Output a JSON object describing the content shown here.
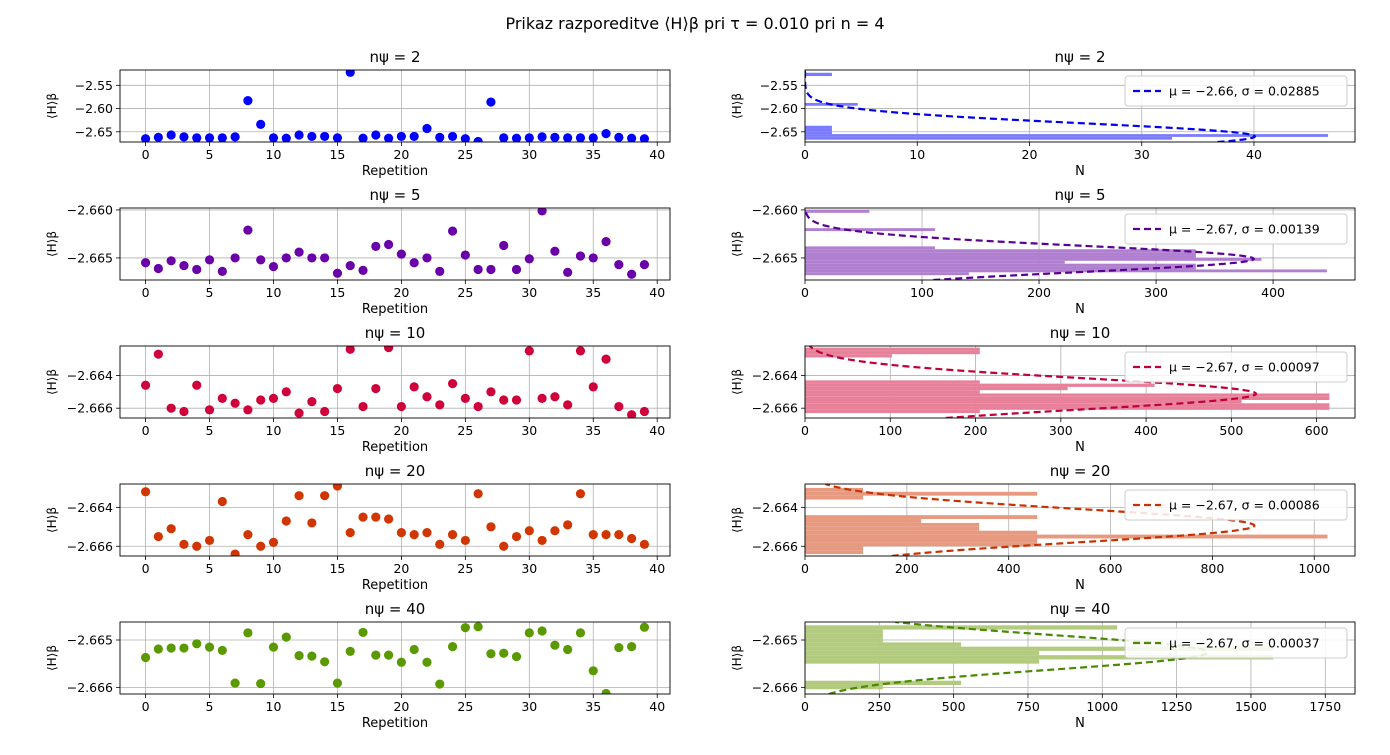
{
  "suptitle": "Prikaz razporeditve ⟨H⟩β pri τ = 0.010 pri n = 4",
  "chart_data": [
    {
      "type": "scatter",
      "title": "nψ = 2",
      "xlabel": "Repetition",
      "ylabel": "⟨H⟩β",
      "color": "#0000ff",
      "xlim": [
        -2,
        41
      ],
      "ylim": [
        -2.672,
        -2.517
      ],
      "xticks": [
        "0",
        "5",
        "10",
        "15",
        "20",
        "25",
        "30",
        "35",
        "40"
      ],
      "yticks": [
        "−2.55",
        "−2.60",
        "−2.65"
      ],
      "grid": true,
      "x": [
        0,
        1,
        2,
        3,
        4,
        5,
        6,
        7,
        8,
        9,
        10,
        11,
        12,
        13,
        14,
        15,
        16,
        17,
        18,
        19,
        20,
        21,
        22,
        23,
        24,
        25,
        26,
        27,
        28,
        29,
        30,
        31,
        32,
        33,
        34,
        35,
        36,
        37,
        38,
        39
      ],
      "y": [
        -2.665,
        -2.662,
        -2.657,
        -2.661,
        -2.663,
        -2.663,
        -2.663,
        -2.661,
        -2.583,
        -2.634,
        -2.663,
        -2.664,
        -2.657,
        -2.66,
        -2.66,
        -2.663,
        -2.522,
        -2.664,
        -2.657,
        -2.664,
        -2.66,
        -2.66,
        -2.643,
        -2.662,
        -2.66,
        -2.665,
        -2.671,
        -2.586,
        -2.663,
        -2.664,
        -2.663,
        -2.661,
        -2.662,
        -2.663,
        -2.663,
        -2.663,
        -2.654,
        -2.662,
        -2.664,
        -2.665
      ]
    },
    {
      "type": "histogram",
      "title": "nψ = 2",
      "xlabel": "N",
      "ylabel": "⟨H⟩β",
      "orientation": "horizontal",
      "color": "#7b7bff",
      "xlim": [
        0,
        49
      ],
      "ylim": [
        -2.672,
        -2.517
      ],
      "xticks": [
        "0",
        "10",
        "20",
        "30",
        "40"
      ],
      "yticks": [
        "−2.55",
        "−2.60",
        "−2.65"
      ],
      "grid": true,
      "bins": [
        [
          -2.53,
          -2.523,
          2.4
        ],
        [
          -2.594,
          -2.588,
          4.7
        ],
        [
          -2.643,
          -2.637,
          2.4
        ],
        [
          -2.649,
          -2.643,
          2.4
        ],
        [
          -2.655,
          -2.649,
          2.4
        ],
        [
          -2.661,
          -2.655,
          46.6
        ],
        [
          -2.667,
          -2.661,
          32.7
        ]
      ],
      "legend": "μ = −2.66, σ = 0.02885",
      "legend_position": "upper right",
      "fit_color": "#0000ee",
      "fit_mu": -2.66,
      "fit_sigma": 0.02885
    },
    {
      "type": "scatter",
      "title": "nψ = 5",
      "xlabel": "Repetition",
      "ylabel": "⟨H⟩β",
      "color": "#6a00a8",
      "xlim": [
        -2,
        41
      ],
      "ylim": [
        -2.6673,
        -2.6598
      ],
      "xticks": [
        "0",
        "5",
        "10",
        "15",
        "20",
        "25",
        "30",
        "35",
        "40"
      ],
      "yticks": [
        "−2.660",
        "−2.665"
      ],
      "grid": true,
      "x": [
        0,
        1,
        2,
        3,
        4,
        5,
        6,
        7,
        8,
        9,
        10,
        11,
        12,
        13,
        14,
        15,
        16,
        17,
        18,
        19,
        20,
        21,
        22,
        23,
        24,
        25,
        26,
        27,
        28,
        29,
        30,
        31,
        32,
        33,
        34,
        35,
        36,
        37,
        38,
        39
      ],
      "y": [
        -2.6655,
        -2.6661,
        -2.6653,
        -2.6658,
        -2.6662,
        -2.6652,
        -2.6664,
        -2.665,
        -2.6621,
        -2.6652,
        -2.6659,
        -2.665,
        -2.6644,
        -2.665,
        -2.665,
        -2.6666,
        -2.6658,
        -2.6663,
        -2.6638,
        -2.6636,
        -2.6646,
        -2.6655,
        -2.665,
        -2.6664,
        -2.6622,
        -2.6647,
        -2.6662,
        -2.6662,
        -2.6637,
        -2.6662,
        -2.6651,
        -2.6601,
        -2.6643,
        -2.6665,
        -2.6648,
        -2.665,
        -2.6633,
        -2.6657,
        -2.6667,
        -2.6657
      ]
    },
    {
      "type": "histogram",
      "title": "nψ = 5",
      "xlabel": "N",
      "ylabel": "⟨H⟩β",
      "orientation": "horizontal",
      "color": "#b07fcf",
      "xlim": [
        0,
        470
      ],
      "ylim": [
        -2.6673,
        -2.6598
      ],
      "xticks": [
        "0",
        "100",
        "200",
        "300",
        "400"
      ],
      "yticks": [
        "−2.660",
        "−2.665"
      ],
      "grid": true,
      "bins": [
        [
          -2.6603,
          -2.66,
          55
        ],
        [
          -2.6622,
          -2.6619,
          111
        ],
        [
          -2.6641,
          -2.6638,
          111
        ],
        [
          -2.6644,
          -2.6641,
          334
        ],
        [
          -2.6647,
          -2.6644,
          334
        ],
        [
          -2.665,
          -2.6647,
          334
        ],
        [
          -2.6653,
          -2.665,
          390
        ],
        [
          -2.6656,
          -2.6653,
          222
        ],
        [
          -2.6659,
          -2.6656,
          334
        ],
        [
          -2.6662,
          -2.6659,
          334
        ],
        [
          -2.6665,
          -2.6662,
          446
        ],
        [
          -2.6668,
          -2.6665,
          140
        ]
      ],
      "legend": "μ = −2.67, σ = 0.00139",
      "legend_position": "upper right",
      "fit_color": "#5a0094",
      "fit_mu": -2.6651,
      "fit_sigma": 0.00139
    },
    {
      "type": "scatter",
      "title": "nψ = 10",
      "xlabel": "Repetition",
      "ylabel": "⟨H⟩β",
      "color": "#d0003a",
      "xlim": [
        -2,
        41
      ],
      "ylim": [
        -2.6666,
        -2.6622
      ],
      "xticks": [
        "0",
        "5",
        "10",
        "15",
        "20",
        "25",
        "30",
        "35",
        "40"
      ],
      "yticks": [
        "−2.664",
        "−2.666"
      ],
      "grid": true,
      "x": [
        0,
        1,
        2,
        3,
        4,
        5,
        6,
        7,
        8,
        9,
        10,
        11,
        12,
        13,
        14,
        15,
        16,
        17,
        18,
        19,
        20,
        21,
        22,
        23,
        24,
        25,
        26,
        27,
        28,
        29,
        30,
        31,
        32,
        33,
        34,
        35,
        36,
        37,
        38,
        39
      ],
      "y": [
        -2.6646,
        -2.6627,
        -2.666,
        -2.6662,
        -2.6646,
        -2.6661,
        -2.6654,
        -2.6657,
        -2.6661,
        -2.6655,
        -2.6654,
        -2.665,
        -2.6663,
        -2.6656,
        -2.6662,
        -2.6648,
        -2.6624,
        -2.6659,
        -2.6648,
        -2.6623,
        -2.6659,
        -2.6647,
        -2.6653,
        -2.6658,
        -2.6645,
        -2.6654,
        -2.6659,
        -2.665,
        -2.6655,
        -2.6655,
        -2.6625,
        -2.6654,
        -2.6653,
        -2.6658,
        -2.6625,
        -2.6647,
        -2.663,
        -2.6659,
        -2.6664,
        -2.6662
      ]
    },
    {
      "type": "histogram",
      "title": "nψ = 10",
      "xlabel": "N",
      "ylabel": "⟨H⟩β",
      "orientation": "horizontal",
      "color": "#e8809a",
      "xlim": [
        0,
        645
      ],
      "ylim": [
        -2.6666,
        -2.6622
      ],
      "xticks": [
        "0",
        "100",
        "200",
        "300",
        "400",
        "500",
        "600"
      ],
      "yticks": [
        "−2.664",
        "−2.666"
      ],
      "grid": true,
      "bins": [
        [
          -2.6625,
          -2.6623,
          205
        ],
        [
          -2.6627,
          -2.6625,
          205
        ],
        [
          -2.6629,
          -2.6627,
          102
        ],
        [
          -2.6645,
          -2.6643,
          205
        ],
        [
          -2.6647,
          -2.6645,
          410
        ],
        [
          -2.6649,
          -2.6647,
          308
        ],
        [
          -2.6651,
          -2.6649,
          205
        ],
        [
          -2.6653,
          -2.6651,
          615
        ],
        [
          -2.6655,
          -2.6653,
          615
        ],
        [
          -2.6657,
          -2.6655,
          512
        ],
        [
          -2.6659,
          -2.6657,
          615
        ],
        [
          -2.6661,
          -2.6659,
          615
        ],
        [
          -2.6663,
          -2.6661,
          205
        ]
      ],
      "legend": "μ = −2.67, σ = 0.00097",
      "legend_position": "upper right",
      "fit_color": "#c0003a",
      "fit_mu": -2.66512,
      "fit_sigma": 0.00097
    },
    {
      "type": "scatter",
      "title": "nψ = 20",
      "xlabel": "Repetition",
      "ylabel": "⟨H⟩β",
      "color": "#d23600",
      "xlim": [
        -2,
        41
      ],
      "ylim": [
        -2.6665,
        -2.6628
      ],
      "xticks": [
        "0",
        "5",
        "10",
        "15",
        "20",
        "25",
        "30",
        "35",
        "40"
      ],
      "yticks": [
        "−2.664",
        "−2.666"
      ],
      "grid": true,
      "x": [
        0,
        1,
        2,
        3,
        4,
        5,
        6,
        7,
        8,
        9,
        10,
        11,
        12,
        13,
        14,
        15,
        16,
        17,
        18,
        19,
        20,
        21,
        22,
        23,
        24,
        25,
        26,
        27,
        28,
        29,
        30,
        31,
        32,
        33,
        34,
        35,
        36,
        37,
        38,
        39
      ],
      "y": [
        -2.6632,
        -2.6655,
        -2.6651,
        -2.6659,
        -2.666,
        -2.6657,
        -2.6637,
        -2.6664,
        -2.6654,
        -2.666,
        -2.6658,
        -2.6647,
        -2.6634,
        -2.6648,
        -2.6634,
        -2.6629,
        -2.6653,
        -2.6645,
        -2.6645,
        -2.6646,
        -2.6653,
        -2.6654,
        -2.6653,
        -2.6659,
        -2.6654,
        -2.6657,
        -2.6633,
        -2.665,
        -2.666,
        -2.6655,
        -2.6652,
        -2.6657,
        -2.6652,
        -2.6649,
        -2.6633,
        -2.6654,
        -2.6654,
        -2.6654,
        -2.6656,
        -2.6659
      ]
    },
    {
      "type": "histogram",
      "title": "nψ = 20",
      "xlabel": "N",
      "ylabel": "⟨H⟩β",
      "orientation": "horizontal",
      "color": "#e89a80",
      "xlim": [
        0,
        1080
      ],
      "ylim": [
        -2.6665,
        -2.6628
      ],
      "xticks": [
        "0",
        "200",
        "400",
        "600",
        "800",
        "1000"
      ],
      "yticks": [
        "−2.664",
        "−2.666"
      ],
      "grid": true,
      "bins": [
        [
          -2.6632,
          -2.663,
          114
        ],
        [
          -2.6634,
          -2.6632,
          456
        ],
        [
          -2.6636,
          -2.6634,
          114
        ],
        [
          -2.6646,
          -2.6644,
          456
        ],
        [
          -2.6648,
          -2.6646,
          228
        ],
        [
          -2.665,
          -2.6648,
          342
        ],
        [
          -2.6652,
          -2.665,
          342
        ],
        [
          -2.6654,
          -2.6652,
          456
        ],
        [
          -2.6656,
          -2.6654,
          1026
        ],
        [
          -2.6658,
          -2.6656,
          456
        ],
        [
          -2.666,
          -2.6658,
          456
        ],
        [
          -2.6662,
          -2.666,
          114
        ],
        [
          -2.6664,
          -2.6662,
          114
        ]
      ],
      "legend": "μ = −2.67, σ = 0.00086",
      "legend_position": "upper right",
      "fit_color": "#c83200",
      "fit_mu": -2.66494,
      "fit_sigma": 0.00086
    },
    {
      "type": "scatter",
      "title": "nψ = 40",
      "xlabel": "Repetition",
      "ylabel": "⟨H⟩β",
      "color": "#5a9a00",
      "xlim": [
        -2,
        41
      ],
      "ylim": [
        -2.66614,
        -2.66462
      ],
      "xticks": [
        "0",
        "5",
        "10",
        "15",
        "20",
        "25",
        "30",
        "35",
        "40"
      ],
      "yticks": [
        "−2.665",
        "−2.666"
      ],
      "grid": true,
      "x": [
        0,
        1,
        2,
        3,
        4,
        5,
        6,
        7,
        8,
        9,
        10,
        11,
        12,
        13,
        14,
        15,
        16,
        17,
        18,
        19,
        20,
        21,
        22,
        23,
        24,
        25,
        26,
        27,
        28,
        29,
        30,
        31,
        32,
        33,
        34,
        35,
        36,
        37,
        38,
        39
      ],
      "y": [
        -2.66537,
        -2.66519,
        -2.66517,
        -2.66517,
        -2.66508,
        -2.66515,
        -2.66522,
        -2.66591,
        -2.66485,
        -2.66592,
        -2.66515,
        -2.66494,
        -2.66533,
        -2.66534,
        -2.66546,
        -2.66591,
        -2.66524,
        -2.66484,
        -2.66532,
        -2.66532,
        -2.66547,
        -2.6652,
        -2.66547,
        -2.66593,
        -2.66514,
        -2.66474,
        -2.66472,
        -2.66529,
        -2.66528,
        -2.66535,
        -2.66485,
        -2.66481,
        -2.66511,
        -2.6652,
        -2.66485,
        -2.66565,
        -2.66613,
        -2.66516,
        -2.66514,
        -2.66473
      ]
    },
    {
      "type": "histogram",
      "title": "nψ = 40",
      "xlabel": "N",
      "ylabel": "⟨H⟩β",
      "orientation": "horizontal",
      "color": "#b2cb7f",
      "xlim": [
        0,
        1850
      ],
      "ylim": [
        -2.66614,
        -2.66462
      ],
      "xticks": [
        "0",
        "250",
        "500",
        "750",
        "1000",
        "1250",
        "1500",
        "1750"
      ],
      "yticks": [
        "−2.665",
        "−2.666"
      ],
      "grid": true,
      "bins": [
        [
          -2.66478,
          -2.66469,
          1050
        ],
        [
          -2.66487,
          -2.66478,
          262
        ],
        [
          -2.66496,
          -2.66487,
          262
        ],
        [
          -2.66505,
          -2.66496,
          262
        ],
        [
          -2.66514,
          -2.66505,
          525
        ],
        [
          -2.66523,
          -2.66514,
          1575
        ],
        [
          -2.66532,
          -2.66523,
          787
        ],
        [
          -2.66541,
          -2.66532,
          1575
        ],
        [
          -2.6655,
          -2.66541,
          787
        ],
        [
          -2.66595,
          -2.66586,
          525
        ],
        [
          -2.66604,
          -2.66595,
          262
        ]
      ],
      "legend": "μ = −2.67, σ = 0.00037",
      "legend_position": "upper right",
      "fit_color": "#4a8a00",
      "fit_mu": -2.66526,
      "fit_sigma": 0.00037
    }
  ]
}
